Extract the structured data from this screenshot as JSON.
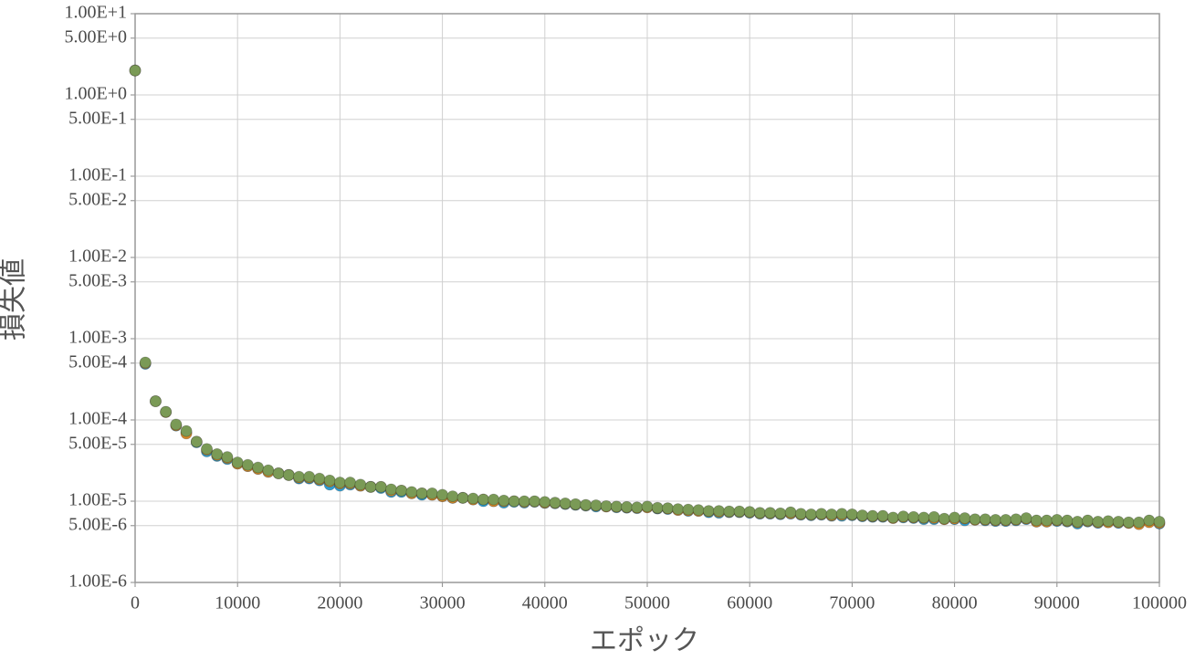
{
  "chart_data": {
    "type": "scatter",
    "x_label": "エポック",
    "y_label": "損失値",
    "yscale": "log",
    "grid": true,
    "xlim": [
      0,
      100000
    ],
    "xticks": [
      0,
      10000,
      20000,
      30000,
      40000,
      50000,
      60000,
      70000,
      80000,
      90000,
      100000
    ],
    "ylim": [
      1e-06,
      10
    ],
    "yticks": [
      {
        "value": 10,
        "label": "1.00E+1"
      },
      {
        "value": 5,
        "label": "5.00E+0"
      },
      {
        "value": 1,
        "label": "1.00E+0"
      },
      {
        "value": 0.5,
        "label": "5.00E-1"
      },
      {
        "value": 0.1,
        "label": "1.00E-1"
      },
      {
        "value": 0.05,
        "label": "5.00E-2"
      },
      {
        "value": 0.01,
        "label": "1.00E-2"
      },
      {
        "value": 0.005,
        "label": "5.00E-3"
      },
      {
        "value": 0.001,
        "label": "1.00E-3"
      },
      {
        "value": 0.0005,
        "label": "5.00E-4"
      },
      {
        "value": 0.0001,
        "label": "1.00E-4"
      },
      {
        "value": 5e-05,
        "label": "5.00E-5"
      },
      {
        "value": 1e-05,
        "label": "1.00E-5"
      },
      {
        "value": 5e-06,
        "label": "5.00E-6"
      },
      {
        "value": 1e-06,
        "label": "1.00E-6"
      }
    ],
    "x": [
      0,
      1000,
      2000,
      3000,
      4000,
      5000,
      6000,
      7000,
      8000,
      9000,
      10000,
      11000,
      12000,
      13000,
      14000,
      15000,
      16000,
      17000,
      18000,
      19000,
      20000,
      21000,
      22000,
      23000,
      24000,
      25000,
      26000,
      27000,
      28000,
      29000,
      30000,
      31000,
      32000,
      33000,
      34000,
      35000,
      36000,
      37000,
      38000,
      39000,
      40000,
      41000,
      42000,
      43000,
      44000,
      45000,
      46000,
      47000,
      48000,
      49000,
      50000,
      51000,
      52000,
      53000,
      54000,
      55000,
      56000,
      57000,
      58000,
      59000,
      60000,
      61000,
      62000,
      63000,
      64000,
      65000,
      66000,
      67000,
      68000,
      69000,
      70000,
      71000,
      72000,
      73000,
      74000,
      75000,
      76000,
      77000,
      78000,
      79000,
      80000,
      81000,
      82000,
      83000,
      84000,
      85000,
      86000,
      87000,
      88000,
      89000,
      90000,
      91000,
      92000,
      93000,
      94000,
      95000,
      96000,
      97000,
      98000,
      99000,
      100000
    ],
    "series": [
      {
        "color": "#2e9fd4",
        "values": [
          2.0,
          0.00049,
          0.00017,
          0.000125,
          8.5e-05,
          7e-05,
          5.3e-05,
          4.1e-05,
          3.6e-05,
          3.3e-05,
          2.9e-05,
          2.7e-05,
          2.5e-05,
          2.3e-05,
          2.2e-05,
          2.1e-05,
          1.9e-05,
          1.9e-05,
          1.8e-05,
          1.6e-05,
          1.55e-05,
          1.6e-05,
          1.55e-05,
          1.5e-05,
          1.45e-05,
          1.3e-05,
          1.3e-05,
          1.25e-05,
          1.2e-05,
          1.2e-05,
          1.15e-05,
          1.1e-05,
          1.1e-05,
          1.05e-05,
          1e-05,
          1e-05,
          9.6e-06,
          9.8e-06,
          9.6e-06,
          9.8e-06,
          9.5e-06,
          9.4e-06,
          9.2e-06,
          9e-06,
          8.8e-06,
          8.6e-06,
          8.6e-06,
          8.4e-06,
          8.3e-06,
          8.2e-06,
          8.4e-06,
          8.1e-06,
          8e-06,
          7.8e-06,
          7.6e-06,
          7.6e-06,
          7.3e-06,
          7.2e-06,
          7.3e-06,
          7.3e-06,
          7.2e-06,
          7e-06,
          7e-06,
          6.9e-06,
          7e-06,
          6.8e-06,
          6.7e-06,
          6.8e-06,
          6.6e-06,
          6.6e-06,
          6.7e-06,
          6.5e-06,
          6.4e-06,
          6.4e-06,
          6.2e-06,
          6.3e-06,
          6.2e-06,
          6e-06,
          6e-06,
          6e-06,
          6e-06,
          5.8e-06,
          5.9e-06,
          5.8e-06,
          5.7e-06,
          5.7e-06,
          5.8e-06,
          6e-06,
          5.6e-06,
          5.6e-06,
          5.7e-06,
          5.6e-06,
          5.3e-06,
          5.6e-06,
          5.4e-06,
          5.5e-06,
          5.4e-06,
          5.4e-06,
          5.3e-06,
          5.6e-06,
          5.3e-06
        ]
      },
      {
        "color": "#d7892a",
        "values": [
          2.0,
          0.0005,
          0.00017,
          0.000125,
          8.6e-05,
          6.8e-05,
          5.4e-05,
          4.3e-05,
          3.7e-05,
          3.4e-05,
          2.9e-05,
          2.7e-05,
          2.5e-05,
          2.3e-05,
          2.2e-05,
          2.1e-05,
          1.95e-05,
          1.95e-05,
          1.85e-05,
          1.75e-05,
          1.65e-05,
          1.65e-05,
          1.55e-05,
          1.5e-05,
          1.5e-05,
          1.35e-05,
          1.35e-05,
          1.25e-05,
          1.25e-05,
          1.2e-05,
          1.15e-05,
          1.1e-05,
          1.1e-05,
          1.05e-05,
          1.05e-05,
          1e-05,
          1e-05,
          1e-05,
          9.8e-06,
          9.9e-06,
          9.6e-06,
          9.5e-06,
          9.3e-06,
          9.1e-06,
          8.9e-06,
          8.8e-06,
          8.6e-06,
          8.5e-06,
          8.4e-06,
          8.3e-06,
          8.4e-06,
          8.2e-06,
          8.1e-06,
          7.8e-06,
          7.7e-06,
          7.6e-06,
          7.5e-06,
          7.4e-06,
          7.4e-06,
          7.4e-06,
          7.3e-06,
          7.1e-06,
          7.1e-06,
          7e-06,
          7.1e-06,
          6.9e-06,
          6.8e-06,
          6.9e-06,
          6.7e-06,
          6.8e-06,
          6.8e-06,
          6.6e-06,
          6.5e-06,
          6.5e-06,
          6.2e-06,
          6.4e-06,
          6.3e-06,
          6.2e-06,
          6.2e-06,
          6e-06,
          6.1e-06,
          6.1e-06,
          5.9e-06,
          5.9e-06,
          5.8e-06,
          5.8e-06,
          5.9e-06,
          6.1e-06,
          5.6e-06,
          5.6e-06,
          5.8e-06,
          5.7e-06,
          5.5e-06,
          5.7e-06,
          5.5e-06,
          5.5e-06,
          5.5e-06,
          5.4e-06,
          5.2e-06,
          5.5e-06,
          5.4e-06
        ]
      },
      {
        "color": "#7a9a56",
        "values": [
          2.0,
          0.00051,
          0.00017,
          0.000126,
          8.8e-05,
          7.3e-05,
          5.4e-05,
          4.4e-05,
          3.8e-05,
          3.5e-05,
          3e-05,
          2.8e-05,
          2.6e-05,
          2.4e-05,
          2.2e-05,
          2.1e-05,
          2e-05,
          2e-05,
          1.9e-05,
          1.8e-05,
          1.7e-05,
          1.7e-05,
          1.6e-05,
          1.5e-05,
          1.5e-05,
          1.4e-05,
          1.35e-05,
          1.3e-05,
          1.25e-05,
          1.25e-05,
          1.2e-05,
          1.15e-05,
          1.1e-05,
          1.08e-05,
          1.05e-05,
          1.05e-05,
          1.02e-05,
          1e-05,
          1e-05,
          1e-05,
          9.8e-06,
          9.6e-06,
          9.4e-06,
          9.2e-06,
          9e-06,
          8.9e-06,
          8.7e-06,
          8.6e-06,
          8.5e-06,
          8.4e-06,
          8.6e-06,
          8.3e-06,
          8.2e-06,
          8e-06,
          7.9e-06,
          7.8e-06,
          7.6e-06,
          7.6e-06,
          7.5e-06,
          7.5e-06,
          7.4e-06,
          7.2e-06,
          7.2e-06,
          7.1e-06,
          7.3e-06,
          7e-06,
          6.9e-06,
          7e-06,
          6.9e-06,
          7e-06,
          6.9e-06,
          6.7e-06,
          6.6e-06,
          6.6e-06,
          6.3e-06,
          6.5e-06,
          6.4e-06,
          6.3e-06,
          6.4e-06,
          6.1e-06,
          6.3e-06,
          6.2e-06,
          6e-06,
          6e-06,
          5.9e-06,
          5.9e-06,
          6e-06,
          6.2e-06,
          5.8e-06,
          5.8e-06,
          5.9e-06,
          5.8e-06,
          5.6e-06,
          5.8e-06,
          5.6e-06,
          5.7e-06,
          5.6e-06,
          5.5e-06,
          5.5e-06,
          5.8e-06,
          5.6e-06
        ]
      }
    ]
  }
}
